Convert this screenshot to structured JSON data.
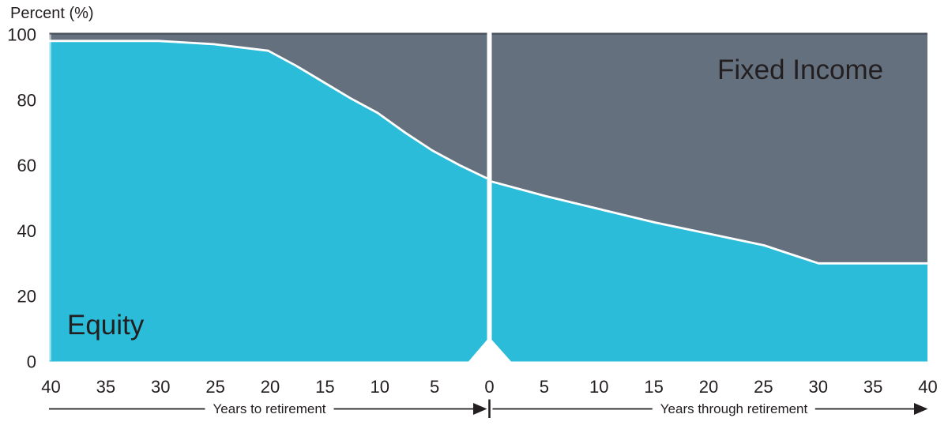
{
  "chart_data": {
    "type": "area",
    "title": "",
    "ylabel": "Percent (%)",
    "ylim": [
      0,
      100
    ],
    "yticks": [
      0,
      20,
      40,
      60,
      80,
      100
    ],
    "stacking_note": "Equity + Fixed Income = 100% at every point (stacked area glide path)",
    "series": [
      {
        "name": "Equity",
        "color": "#2abcd9"
      },
      {
        "name": "Fixed Income",
        "color": "#64707e"
      }
    ],
    "x_left": {
      "label": "Years to retirement",
      "ticks": [
        40,
        35,
        30,
        25,
        20,
        15,
        10,
        5,
        0
      ],
      "years_to_retirement": [
        40,
        35,
        30,
        25,
        20,
        17.5,
        15,
        12.5,
        10,
        7.5,
        5,
        2.5,
        0
      ],
      "equity_pct": [
        98,
        98,
        98,
        97,
        95,
        90.5,
        85.5,
        80.5,
        76,
        70,
        64.5,
        60,
        56
      ]
    },
    "x_right": {
      "label": "Years through retirement",
      "ticks": [
        5,
        10,
        15,
        20,
        25,
        30,
        35,
        40
      ],
      "years_through_retirement": [
        0,
        5,
        10,
        15,
        20,
        25,
        30,
        35,
        40
      ],
      "equity_pct": [
        55,
        50.5,
        46.5,
        42.5,
        39,
        35.5,
        30,
        30,
        30
      ]
    },
    "colors": {
      "equity": "#2abcd9",
      "fixed_income": "#64707e",
      "boundary_line": "#ffffff",
      "top_edge": "#49525e",
      "text": "#231f20",
      "divider_gap": "#ffffff"
    },
    "legend_position": "labels drawn inside areas"
  }
}
